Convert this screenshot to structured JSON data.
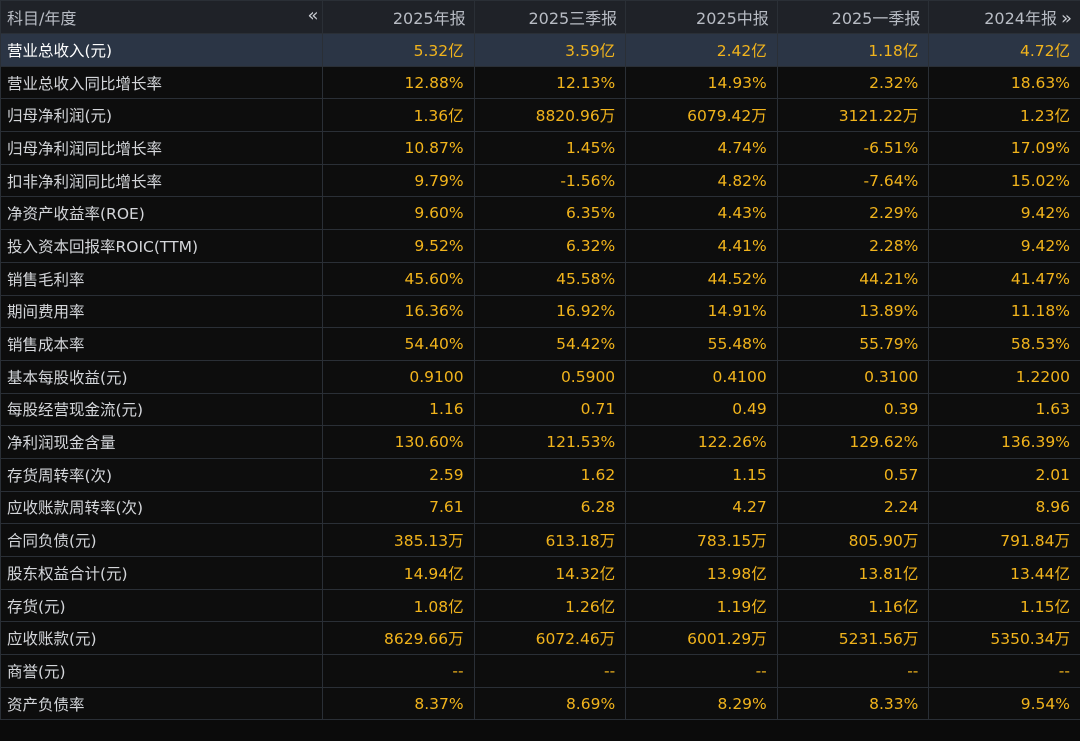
{
  "header": {
    "label": "科目/年度",
    "nav_left": "«",
    "nav_right": "»",
    "periods": [
      "2025年报",
      "2025三季报",
      "2025中报",
      "2025一季报",
      "2024年报"
    ]
  },
  "highlighted_row": 0,
  "rows": [
    {
      "label": "营业总收入(元)",
      "values": [
        "5.32亿",
        "3.59亿",
        "2.42亿",
        "1.18亿",
        "4.72亿"
      ]
    },
    {
      "label": "营业总收入同比增长率",
      "values": [
        "12.88%",
        "12.13%",
        "14.93%",
        "2.32%",
        "18.63%"
      ]
    },
    {
      "label": "归母净利润(元)",
      "values": [
        "1.36亿",
        "8820.96万",
        "6079.42万",
        "3121.22万",
        "1.23亿"
      ]
    },
    {
      "label": "归母净利润同比增长率",
      "values": [
        "10.87%",
        "1.45%",
        "4.74%",
        "-6.51%",
        "17.09%"
      ]
    },
    {
      "label": "扣非净利润同比增长率",
      "values": [
        "9.79%",
        "-1.56%",
        "4.82%",
        "-7.64%",
        "15.02%"
      ]
    },
    {
      "label": "净资产收益率(ROE)",
      "values": [
        "9.60%",
        "6.35%",
        "4.43%",
        "2.29%",
        "9.42%"
      ]
    },
    {
      "label": "投入资本回报率ROIC(TTM)",
      "values": [
        "9.52%",
        "6.32%",
        "4.41%",
        "2.28%",
        "9.42%"
      ]
    },
    {
      "label": "销售毛利率",
      "values": [
        "45.60%",
        "45.58%",
        "44.52%",
        "44.21%",
        "41.47%"
      ]
    },
    {
      "label": "期间费用率",
      "values": [
        "16.36%",
        "16.92%",
        "14.91%",
        "13.89%",
        "11.18%"
      ]
    },
    {
      "label": "销售成本率",
      "values": [
        "54.40%",
        "54.42%",
        "55.48%",
        "55.79%",
        "58.53%"
      ]
    },
    {
      "label": "基本每股收益(元)",
      "values": [
        "0.9100",
        "0.5900",
        "0.4100",
        "0.3100",
        "1.2200"
      ]
    },
    {
      "label": "每股经营现金流(元)",
      "values": [
        "1.16",
        "0.71",
        "0.49",
        "0.39",
        "1.63"
      ]
    },
    {
      "label": "净利润现金含量",
      "values": [
        "130.60%",
        "121.53%",
        "122.26%",
        "129.62%",
        "136.39%"
      ]
    },
    {
      "label": "存货周转率(次)",
      "values": [
        "2.59",
        "1.62",
        "1.15",
        "0.57",
        "2.01"
      ]
    },
    {
      "label": "应收账款周转率(次)",
      "values": [
        "7.61",
        "6.28",
        "4.27",
        "2.24",
        "8.96"
      ]
    },
    {
      "label": "合同负债(元)",
      "values": [
        "385.13万",
        "613.18万",
        "783.15万",
        "805.90万",
        "791.84万"
      ]
    },
    {
      "label": "股东权益合计(元)",
      "values": [
        "14.94亿",
        "14.32亿",
        "13.98亿",
        "13.81亿",
        "13.44亿"
      ]
    },
    {
      "label": "存货(元)",
      "values": [
        "1.08亿",
        "1.26亿",
        "1.19亿",
        "1.16亿",
        "1.15亿"
      ]
    },
    {
      "label": "应收账款(元)",
      "values": [
        "8629.66万",
        "6072.46万",
        "6001.29万",
        "5231.56万",
        "5350.34万"
      ]
    },
    {
      "label": "商誉(元)",
      "values": [
        "--",
        "--",
        "--",
        "--",
        "--"
      ]
    },
    {
      "label": "资产负债率",
      "values": [
        "8.37%",
        "8.69%",
        "8.29%",
        "8.33%",
        "9.54%"
      ]
    }
  ]
}
